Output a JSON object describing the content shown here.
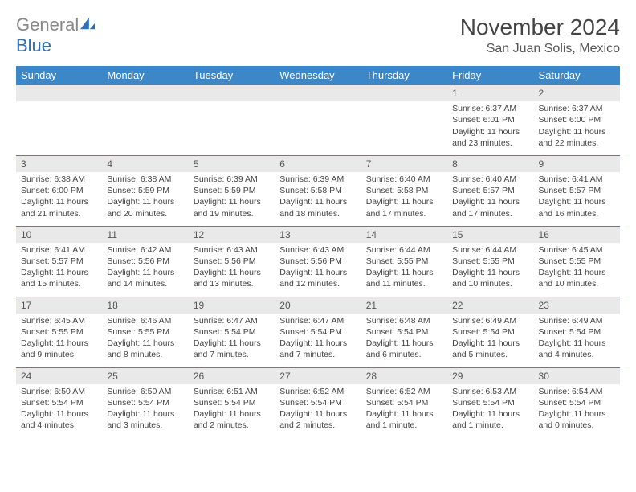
{
  "brand": {
    "part1": "General",
    "part2": "Blue"
  },
  "title": "November 2024",
  "location": "San Juan Solis, Mexico",
  "colors": {
    "header_bg": "#3b87c8",
    "header_text": "#ffffff",
    "daynum_bg": "#e9e9e9",
    "row_border": "#3b87c8",
    "text": "#444444",
    "brand_gray": "#888888",
    "brand_blue": "#2d72b8"
  },
  "weekdays": [
    "Sunday",
    "Monday",
    "Tuesday",
    "Wednesday",
    "Thursday",
    "Friday",
    "Saturday"
  ],
  "weeks": [
    [
      null,
      null,
      null,
      null,
      null,
      {
        "n": 1,
        "sr": "6:37 AM",
        "ss": "6:01 PM",
        "dl": "11 hours and 23 minutes."
      },
      {
        "n": 2,
        "sr": "6:37 AM",
        "ss": "6:00 PM",
        "dl": "11 hours and 22 minutes."
      }
    ],
    [
      {
        "n": 3,
        "sr": "6:38 AM",
        "ss": "6:00 PM",
        "dl": "11 hours and 21 minutes."
      },
      {
        "n": 4,
        "sr": "6:38 AM",
        "ss": "5:59 PM",
        "dl": "11 hours and 20 minutes."
      },
      {
        "n": 5,
        "sr": "6:39 AM",
        "ss": "5:59 PM",
        "dl": "11 hours and 19 minutes."
      },
      {
        "n": 6,
        "sr": "6:39 AM",
        "ss": "5:58 PM",
        "dl": "11 hours and 18 minutes."
      },
      {
        "n": 7,
        "sr": "6:40 AM",
        "ss": "5:58 PM",
        "dl": "11 hours and 17 minutes."
      },
      {
        "n": 8,
        "sr": "6:40 AM",
        "ss": "5:57 PM",
        "dl": "11 hours and 17 minutes."
      },
      {
        "n": 9,
        "sr": "6:41 AM",
        "ss": "5:57 PM",
        "dl": "11 hours and 16 minutes."
      }
    ],
    [
      {
        "n": 10,
        "sr": "6:41 AM",
        "ss": "5:57 PM",
        "dl": "11 hours and 15 minutes."
      },
      {
        "n": 11,
        "sr": "6:42 AM",
        "ss": "5:56 PM",
        "dl": "11 hours and 14 minutes."
      },
      {
        "n": 12,
        "sr": "6:43 AM",
        "ss": "5:56 PM",
        "dl": "11 hours and 13 minutes."
      },
      {
        "n": 13,
        "sr": "6:43 AM",
        "ss": "5:56 PM",
        "dl": "11 hours and 12 minutes."
      },
      {
        "n": 14,
        "sr": "6:44 AM",
        "ss": "5:55 PM",
        "dl": "11 hours and 11 minutes."
      },
      {
        "n": 15,
        "sr": "6:44 AM",
        "ss": "5:55 PM",
        "dl": "11 hours and 10 minutes."
      },
      {
        "n": 16,
        "sr": "6:45 AM",
        "ss": "5:55 PM",
        "dl": "11 hours and 10 minutes."
      }
    ],
    [
      {
        "n": 17,
        "sr": "6:45 AM",
        "ss": "5:55 PM",
        "dl": "11 hours and 9 minutes."
      },
      {
        "n": 18,
        "sr": "6:46 AM",
        "ss": "5:55 PM",
        "dl": "11 hours and 8 minutes."
      },
      {
        "n": 19,
        "sr": "6:47 AM",
        "ss": "5:54 PM",
        "dl": "11 hours and 7 minutes."
      },
      {
        "n": 20,
        "sr": "6:47 AM",
        "ss": "5:54 PM",
        "dl": "11 hours and 7 minutes."
      },
      {
        "n": 21,
        "sr": "6:48 AM",
        "ss": "5:54 PM",
        "dl": "11 hours and 6 minutes."
      },
      {
        "n": 22,
        "sr": "6:49 AM",
        "ss": "5:54 PM",
        "dl": "11 hours and 5 minutes."
      },
      {
        "n": 23,
        "sr": "6:49 AM",
        "ss": "5:54 PM",
        "dl": "11 hours and 4 minutes."
      }
    ],
    [
      {
        "n": 24,
        "sr": "6:50 AM",
        "ss": "5:54 PM",
        "dl": "11 hours and 4 minutes."
      },
      {
        "n": 25,
        "sr": "6:50 AM",
        "ss": "5:54 PM",
        "dl": "11 hours and 3 minutes."
      },
      {
        "n": 26,
        "sr": "6:51 AM",
        "ss": "5:54 PM",
        "dl": "11 hours and 2 minutes."
      },
      {
        "n": 27,
        "sr": "6:52 AM",
        "ss": "5:54 PM",
        "dl": "11 hours and 2 minutes."
      },
      {
        "n": 28,
        "sr": "6:52 AM",
        "ss": "5:54 PM",
        "dl": "11 hours and 1 minute."
      },
      {
        "n": 29,
        "sr": "6:53 AM",
        "ss": "5:54 PM",
        "dl": "11 hours and 1 minute."
      },
      {
        "n": 30,
        "sr": "6:54 AM",
        "ss": "5:54 PM",
        "dl": "11 hours and 0 minutes."
      }
    ]
  ],
  "labels": {
    "sunrise": "Sunrise: ",
    "sunset": "Sunset: ",
    "daylight": "Daylight: "
  }
}
